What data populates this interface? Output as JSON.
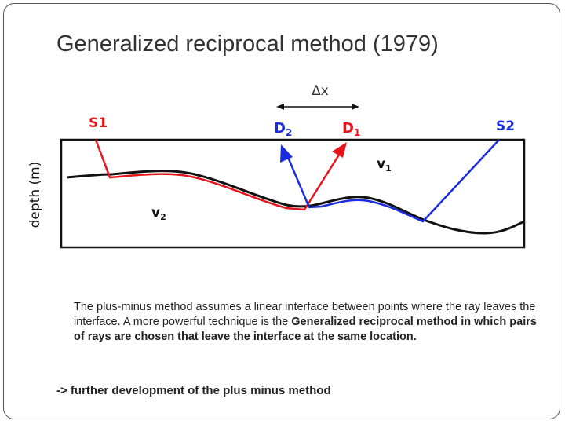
{
  "slide": {
    "title": "Generalized reciprocal method (1979)",
    "paragraph": {
      "normal_1": "The plus-minus method assumes a linear interface between points where the ray leaves the interface. A more powerful technique is the ",
      "bold_1": "Generalized reciprocal method in which pairs of rays are chosen that leave the interface at the same location."
    },
    "note": "-> further development of the plus minus method"
  },
  "figure": {
    "delta_label": "Δx",
    "s1_label": "S1",
    "s2_label": "S2",
    "d_label": "D",
    "d2_sub": "2",
    "d1_sub": "1",
    "v_label": "v",
    "v1_sub": "1",
    "v2_sub": "2",
    "y_axis_label": "depth (m)",
    "colors": {
      "red_ray": "#e8141c",
      "blue_ray": "#1a2ce0",
      "interface": "#111111",
      "frame": "#111111"
    }
  }
}
